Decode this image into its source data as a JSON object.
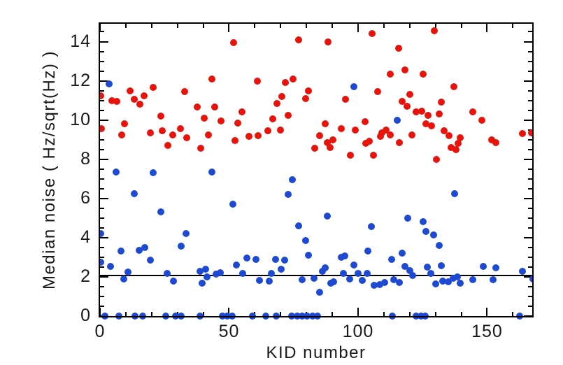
{
  "figure": {
    "background_color": "#ffffff",
    "frame_color": "#000000",
    "text_color": "#1a1a1a"
  },
  "chart_data": {
    "type": "scatter",
    "title": "",
    "xlabel": "KID number",
    "ylabel": "Median noise ( Hz/sqrt(Hz) )",
    "xlim": [
      0,
      167.5
    ],
    "ylim": [
      0,
      14.91
    ],
    "x_major_ticks": [
      0,
      50,
      100,
      150
    ],
    "x_minor_step": 10,
    "y_major_ticks": [
      0,
      2,
      4,
      6,
      8,
      10,
      12,
      14
    ],
    "y_minor_step": 0.5,
    "grid": false,
    "legend": "none",
    "reference_line_y": 2.06,
    "marker": "filled-circle",
    "marker_diameter_px": 10,
    "series": [
      {
        "name": "red",
        "color": "#e8130b",
        "points": [
          [
            0.3,
            11.25
          ],
          [
            4.6,
            11.0
          ],
          [
            6.6,
            10.95
          ],
          [
            11.7,
            11.5
          ],
          [
            13.4,
            11.05
          ],
          [
            15.4,
            10.8
          ],
          [
            17.0,
            11.25
          ],
          [
            20.5,
            11.65
          ],
          [
            32.7,
            11.45
          ],
          [
            51.9,
            13.95
          ],
          [
            43.5,
            12.1
          ],
          [
            37.7,
            10.65
          ],
          [
            44.4,
            10.65
          ],
          [
            46.9,
            9.95
          ],
          [
            23.5,
            10.2
          ],
          [
            9.5,
            9.8
          ],
          [
            8.4,
            9.25
          ],
          [
            0.5,
            9.55
          ],
          [
            19.4,
            9.35
          ],
          [
            24.2,
            9.45
          ],
          [
            28.2,
            9.25
          ],
          [
            31.1,
            9.55
          ],
          [
            33.6,
            9.1
          ],
          [
            26.4,
            8.7
          ],
          [
            39.0,
            8.55
          ],
          [
            40.4,
            10.1
          ],
          [
            41.9,
            9.25
          ],
          [
            55.0,
            10.4
          ],
          [
            53.4,
            9.85
          ],
          [
            52.4,
            8.95
          ],
          [
            77.0,
            14.1
          ],
          [
            88.3,
            14.0
          ],
          [
            105.5,
            14.4
          ],
          [
            60.9,
            12.0
          ],
          [
            71.9,
            11.9
          ],
          [
            74.8,
            12.1
          ],
          [
            112.6,
            12.35
          ],
          [
            107.5,
            11.45
          ],
          [
            80.7,
            11.5
          ],
          [
            95.1,
            11.05
          ],
          [
            79.8,
            11.1
          ],
          [
            70.5,
            11.2
          ],
          [
            68.6,
            10.85
          ],
          [
            72.8,
            10.25
          ],
          [
            66.9,
            10.05
          ],
          [
            87.2,
            9.8
          ],
          [
            93.5,
            9.55
          ],
          [
            102.8,
            9.9
          ],
          [
            65.1,
            9.45
          ],
          [
            69.8,
            9.5
          ],
          [
            61.3,
            9.2
          ],
          [
            57.8,
            9.15
          ],
          [
            98.9,
            9.5
          ],
          [
            85.1,
            9.2
          ],
          [
            88.1,
            8.85
          ],
          [
            90.2,
            9.0
          ],
          [
            83.2,
            8.55
          ],
          [
            89.3,
            8.6
          ],
          [
            103.0,
            8.8
          ],
          [
            104.3,
            8.9
          ],
          [
            109.1,
            9.35
          ],
          [
            110.9,
            9.5
          ],
          [
            108.6,
            9.15
          ],
          [
            97.1,
            8.2
          ],
          [
            106.0,
            8.2
          ],
          [
            112.5,
            9.25
          ],
          [
            129.5,
            14.55
          ],
          [
            115.8,
            13.65
          ],
          [
            118.1,
            12.55
          ],
          [
            125.1,
            12.35
          ],
          [
            137.2,
            11.7
          ],
          [
            120.1,
            11.3
          ],
          [
            117.2,
            10.95
          ],
          [
            119.0,
            10.7
          ],
          [
            122.4,
            10.4
          ],
          [
            124.6,
            10.45
          ],
          [
            127.1,
            10.25
          ],
          [
            132.3,
            10.9
          ],
          [
            131.4,
            10.3
          ],
          [
            126.2,
            9.8
          ],
          [
            128.4,
            9.7
          ],
          [
            144.4,
            10.4
          ],
          [
            148.0,
            10.0
          ],
          [
            120.8,
            9.25
          ],
          [
            116.1,
            8.85
          ],
          [
            133.4,
            9.45
          ],
          [
            135.2,
            9.2
          ],
          [
            139.7,
            9.1
          ],
          [
            136.1,
            8.6
          ],
          [
            138.0,
            8.5
          ],
          [
            138.8,
            8.8
          ],
          [
            151.8,
            9.0
          ],
          [
            153.3,
            8.85
          ],
          [
            163.7,
            9.3
          ],
          [
            167.2,
            9.35
          ],
          [
            130.5,
            8.0
          ]
        ]
      },
      {
        "name": "blue",
        "color": "#1e49d2",
        "points": [
          [
            3.4,
            11.85
          ],
          [
            98.3,
            11.7
          ],
          [
            115.1,
            10.0
          ],
          [
            6.1,
            7.35
          ],
          [
            20.5,
            7.3
          ],
          [
            43.4,
            7.35
          ],
          [
            74.6,
            6.95
          ],
          [
            13.4,
            6.25
          ],
          [
            137.4,
            6.25
          ],
          [
            72.8,
            6.2
          ],
          [
            51.5,
            5.7
          ],
          [
            23.5,
            5.3
          ],
          [
            88.1,
            5.1
          ],
          [
            119.2,
            5.0
          ],
          [
            125.3,
            4.8
          ],
          [
            76.9,
            4.6
          ],
          [
            105.1,
            4.55
          ],
          [
            126.2,
            4.3
          ],
          [
            129.4,
            4.15
          ],
          [
            0.3,
            4.2
          ],
          [
            33.4,
            4.2
          ],
          [
            79.8,
            3.85
          ],
          [
            131.4,
            3.6
          ],
          [
            31.4,
            3.55
          ],
          [
            17.4,
            3.5
          ],
          [
            15.1,
            3.35
          ],
          [
            8.2,
            3.3
          ],
          [
            103.9,
            3.3
          ],
          [
            117.2,
            3.2
          ],
          [
            80.7,
            3.1
          ],
          [
            93.5,
            3.0
          ],
          [
            94.9,
            3.05
          ],
          [
            57.0,
            2.95
          ],
          [
            60.5,
            2.9
          ],
          [
            68.1,
            2.9
          ],
          [
            71.5,
            2.85
          ],
          [
            19.4,
            2.85
          ],
          [
            112.9,
            2.9
          ],
          [
            0.3,
            2.75
          ],
          [
            52.8,
            2.6
          ],
          [
            98.5,
            2.6
          ],
          [
            132.3,
            2.57
          ],
          [
            4.1,
            2.55
          ],
          [
            118.1,
            2.55
          ],
          [
            126.9,
            2.5
          ],
          [
            148.5,
            2.55
          ],
          [
            153.3,
            2.45
          ],
          [
            40.8,
            2.4
          ],
          [
            70.1,
            2.4
          ],
          [
            87.2,
            2.45
          ],
          [
            38.8,
            2.3
          ],
          [
            120.1,
            2.33
          ],
          [
            163.7,
            2.28
          ],
          [
            86.1,
            2.28
          ],
          [
            10.9,
            2.25
          ],
          [
            46.7,
            2.2
          ],
          [
            55.2,
            2.18
          ],
          [
            25.9,
            2.18
          ],
          [
            66.5,
            2.16
          ],
          [
            94.4,
            2.16
          ],
          [
            100.0,
            2.19
          ],
          [
            103.6,
            2.16
          ],
          [
            44.9,
            2.13
          ],
          [
            121.2,
            2.07
          ],
          [
            128.2,
            2.19
          ],
          [
            41.5,
            1.98
          ],
          [
            138.6,
            1.98
          ],
          [
            82.9,
            1.92
          ],
          [
            9.1,
            1.9
          ],
          [
            137.0,
            1.92
          ],
          [
            167.7,
            1.9
          ],
          [
            96.8,
            1.88
          ],
          [
            113.8,
            1.86
          ],
          [
            61.7,
            1.82
          ],
          [
            65.6,
            1.8
          ],
          [
            78.2,
            1.84
          ],
          [
            28.4,
            1.8
          ],
          [
            90.6,
            1.76
          ],
          [
            101.6,
            1.82
          ],
          [
            132.9,
            1.8
          ],
          [
            135.1,
            1.74
          ],
          [
            89.5,
            1.66
          ],
          [
            39.5,
            1.68
          ],
          [
            116.1,
            1.71
          ],
          [
            130.2,
            1.65
          ],
          [
            139.5,
            1.68
          ],
          [
            144.4,
            1.84
          ],
          [
            152.3,
            1.84
          ],
          [
            106.3,
            1.56
          ],
          [
            108.4,
            1.6
          ],
          [
            110.2,
            1.71
          ],
          [
            85.0,
            1.2
          ],
          [
            1.8,
            0
          ],
          [
            7.4,
            0
          ],
          [
            13.6,
            0
          ],
          [
            16.4,
            0
          ],
          [
            25.4,
            0
          ],
          [
            29.2,
            0
          ],
          [
            31.4,
            0
          ],
          [
            38.8,
            0
          ],
          [
            47.3,
            0
          ],
          [
            49.2,
            0
          ],
          [
            51.1,
            0
          ],
          [
            59.1,
            0
          ],
          [
            64.2,
            0
          ],
          [
            68.4,
            0
          ],
          [
            74.2,
            0
          ],
          [
            76.3,
            0
          ],
          [
            78.3,
            0
          ],
          [
            80.3,
            0
          ],
          [
            82.4,
            0
          ],
          [
            84.3,
            0
          ],
          [
            113.3,
            0
          ],
          [
            122.6,
            0
          ],
          [
            124.5,
            0
          ],
          [
            126.0,
            0
          ],
          [
            162.6,
            0
          ]
        ]
      }
    ]
  }
}
